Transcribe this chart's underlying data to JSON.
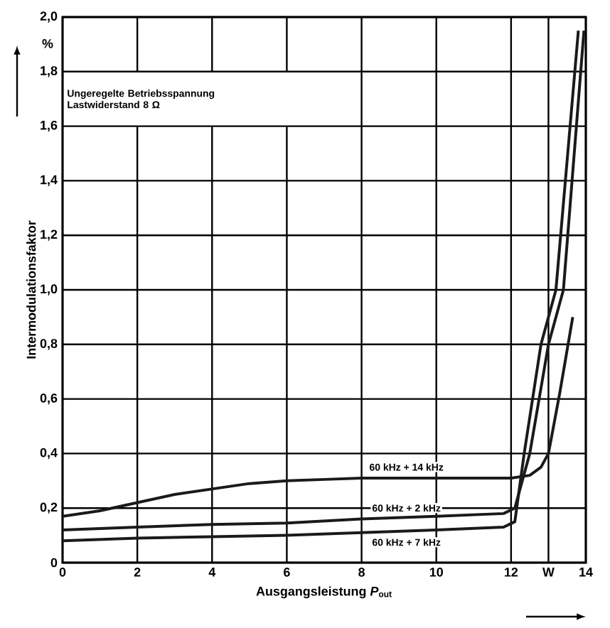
{
  "chart_data": {
    "type": "line",
    "xlabel": "Ausgangsleistung *P*$_{out}$",
    "ylabel": "Intermodulationsfaktor",
    "annotations": [
      "Ungeregelte Betriebsspannung",
      "Lastwiderstand 8 Ω",
      "%"
    ],
    "xlim": [
      0,
      14
    ],
    "ylim": [
      0,
      2.0
    ],
    "xticks": [
      0,
      2,
      4,
      6,
      8,
      10,
      12,
      {
        "value": 13,
        "label": "W"
      },
      14
    ],
    "yticks": [
      0,
      {
        "value": 0.2,
        "label": "0,2"
      },
      {
        "value": 0.4,
        "label": "0,4"
      },
      {
        "value": 0.6,
        "label": "0,6"
      },
      {
        "value": 0.8,
        "label": "0,8"
      },
      {
        "value": 1.0,
        "label": "1,0"
      },
      {
        "value": 1.2,
        "label": "1,2"
      },
      {
        "value": 1.4,
        "label": "1,4"
      },
      {
        "value": 1.6,
        "label": "1,6"
      },
      {
        "value": 1.8,
        "label": "1,8"
      },
      {
        "value": 2.0,
        "label": "2,0"
      }
    ],
    "grid": true,
    "legend": false,
    "marker": "none",
    "line_style": "solid",
    "series": [
      {
        "name": "60 kHz + 14 kHz",
        "color": "#1a1a1a",
        "x": [
          0,
          1,
          2,
          3,
          4,
          5,
          6,
          7,
          8,
          9,
          10,
          11,
          12,
          12.5,
          12.8,
          13.0,
          13.3,
          13.65
        ],
        "values": [
          0.17,
          0.19,
          0.22,
          0.25,
          0.27,
          0.29,
          0.3,
          0.305,
          0.31,
          0.31,
          0.31,
          0.31,
          0.31,
          0.32,
          0.35,
          0.4,
          0.62,
          0.9
        ]
      },
      {
        "name": "60 kHz + 2 kHz",
        "color": "#1a1a1a",
        "x": [
          0,
          2,
          4,
          6,
          8,
          10,
          11.8,
          12.1,
          12.3,
          12.5,
          13.0,
          13.4,
          13.95
        ],
        "values": [
          0.12,
          0.13,
          0.14,
          0.145,
          0.16,
          0.17,
          0.18,
          0.2,
          0.3,
          0.4,
          0.8,
          1.0,
          1.95
        ]
      },
      {
        "name": "60 kHz + 7 kHz",
        "color": "#1a1a1a",
        "x": [
          0,
          2,
          4,
          6,
          8,
          10,
          11.8,
          12.1,
          12.35,
          12.8,
          13.2,
          13.8
        ],
        "values": [
          0.08,
          0.09,
          0.095,
          0.1,
          0.11,
          0.12,
          0.13,
          0.15,
          0.4,
          0.8,
          1.0,
          1.95
        ]
      }
    ]
  }
}
